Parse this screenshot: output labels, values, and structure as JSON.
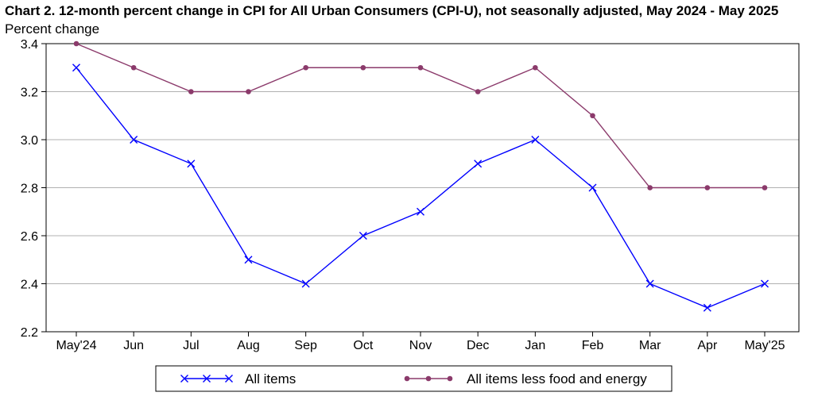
{
  "chart_data": {
    "type": "line",
    "title": "Chart 2. 12-month percent change in CPI for All Urban Consumers (CPI-U), not seasonally adjusted, May 2024 - May 2025",
    "ylabel": "Percent change",
    "xlabel": "",
    "categories": [
      "May'24",
      "Jun",
      "Jul",
      "Aug",
      "Sep",
      "Oct",
      "Nov",
      "Dec",
      "Jan",
      "Feb",
      "Mar",
      "Apr",
      "May'25"
    ],
    "ylim": [
      2.2,
      3.4
    ],
    "yticks": [
      "2.2",
      "2.4",
      "2.6",
      "2.8",
      "3.0",
      "3.2",
      "3.4"
    ],
    "grid": true,
    "legend_position": "bottom",
    "series": [
      {
        "name": "All items",
        "color": "#0000ff",
        "marker": "x",
        "values": [
          3.3,
          3.0,
          2.9,
          2.5,
          2.4,
          2.6,
          2.7,
          2.9,
          3.0,
          2.8,
          2.4,
          2.3,
          2.4
        ]
      },
      {
        "name": "All items less food and energy",
        "color": "#8b3a6b",
        "marker": "dot",
        "values": [
          3.4,
          3.3,
          3.2,
          3.2,
          3.3,
          3.3,
          3.3,
          3.2,
          3.3,
          3.1,
          2.8,
          2.8,
          2.8
        ]
      }
    ]
  }
}
